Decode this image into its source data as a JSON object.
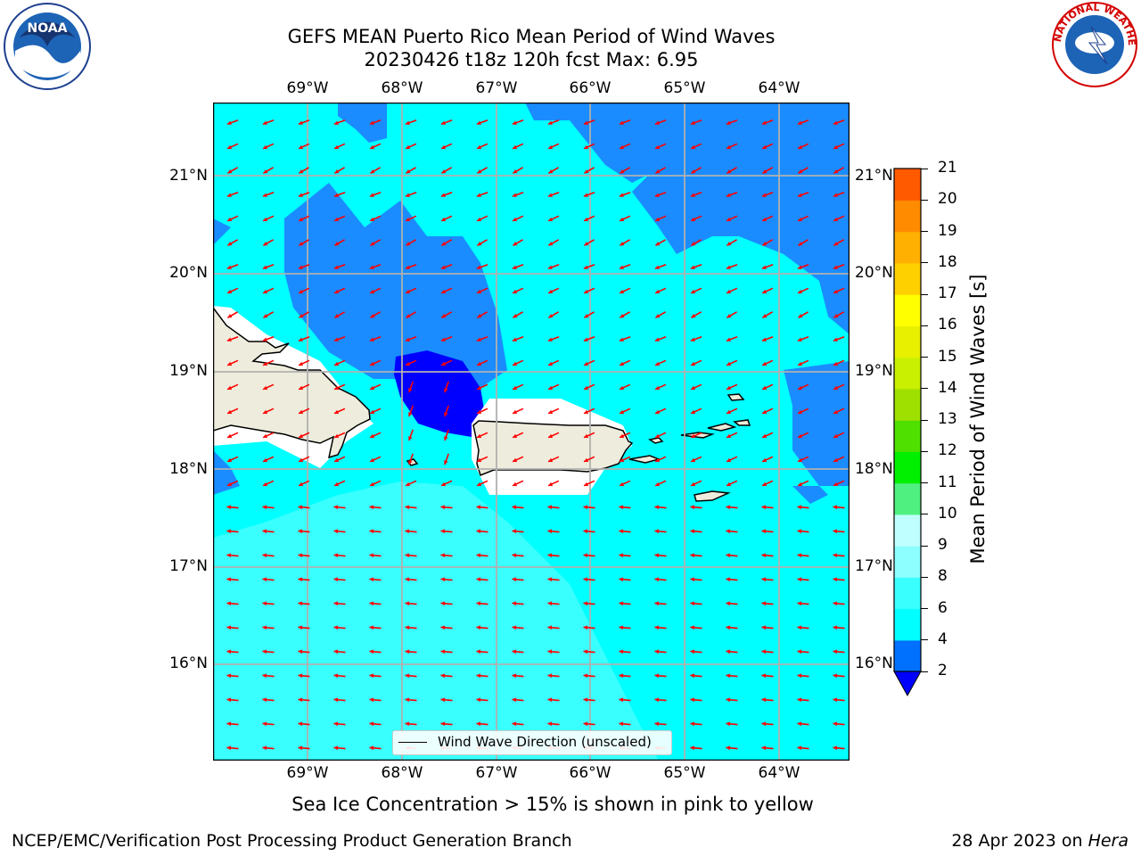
{
  "header": {
    "title_line1": "GEFS MEAN Puerto Rico Mean Period of Wind Waves",
    "title_line2": "20230426 t18z 120h fcst   Max: 6.95"
  },
  "logos": {
    "noara_text": "NOAA",
    "noaa_ring_text": "NATIONAL OCEANIC AND ATMOSPHERIC ADMINISTRATION · U.S. DEPARTMENT OF COMMERCE",
    "nws_ring_text": "NATIONAL WEATHER SERVICE"
  },
  "map": {
    "lon_labels": [
      "69°W",
      "68°W",
      "67°W",
      "66°W",
      "65°W",
      "64°W"
    ],
    "lat_labels": [
      "21°N",
      "20°N",
      "19°N",
      "18°N",
      "17°N",
      "16°N"
    ],
    "legend_label": "Wind Wave Direction (unscaled)",
    "arrow_color": "#ff0000",
    "land_color": "#eeecdc",
    "grid": true
  },
  "colorbar": {
    "label": "Mean Period of Wind Waves [s]",
    "ticks": [
      "2",
      "4",
      "6",
      "8",
      "9",
      "10",
      "11",
      "12",
      "13",
      "14",
      "15",
      "16",
      "17",
      "18",
      "19",
      "20",
      "21"
    ],
    "colors": [
      "#0070ff",
      "#00ffff",
      "#39ffff",
      "#8dffff",
      "#c0ffff",
      "#50f080",
      "#00f000",
      "#50e000",
      "#a0e000",
      "#c8f000",
      "#e8f000",
      "#ffff00",
      "#ffd000",
      "#ffb000",
      "#ff8c00",
      "#ff5a00",
      "#ff2800",
      "#ff0000"
    ],
    "under_color": "#0000ff"
  },
  "footer": {
    "ice_note": "Sea Ice Concentration > 15% is shown in pink to yellow",
    "branch": "NCEP/EMC/Verification Post Processing Product Generation Branch",
    "date_prefix": "28 Apr 2023 on ",
    "machine": "Hera"
  }
}
